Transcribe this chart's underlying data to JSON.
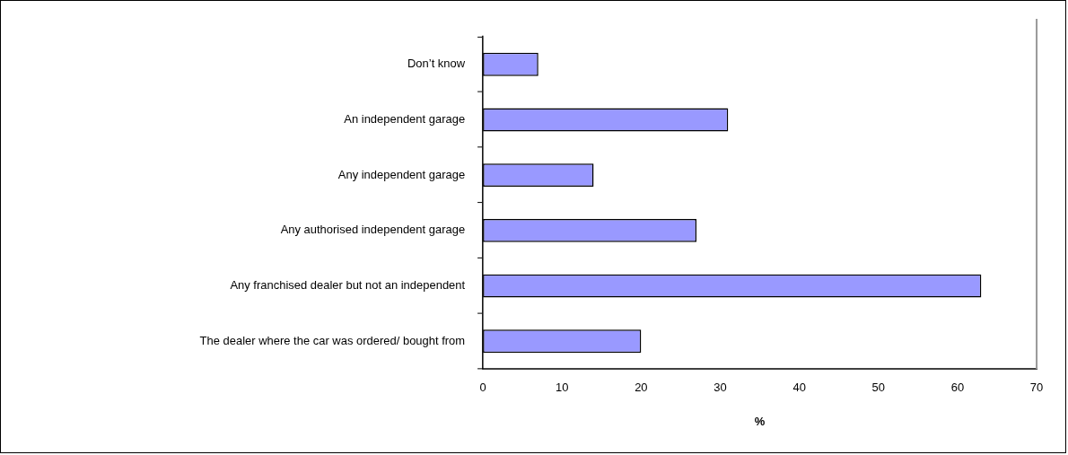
{
  "chart_data": {
    "type": "bar",
    "orientation": "horizontal",
    "xlabel": "%",
    "categories": [
      "Don’t know",
      "An independent garage",
      "Any independent garage",
      "Any authorised independent garage",
      "Any franchised dealer but not an independent",
      "The dealer where the car was ordered/ bought from"
    ],
    "values": [
      7,
      31,
      14,
      27,
      63,
      20
    ],
    "color": "#9999ff",
    "xlim": [
      0,
      70
    ],
    "xticks": [
      0,
      10,
      20,
      30,
      40,
      50,
      60,
      70
    ],
    "grid": false,
    "legend": false
  }
}
